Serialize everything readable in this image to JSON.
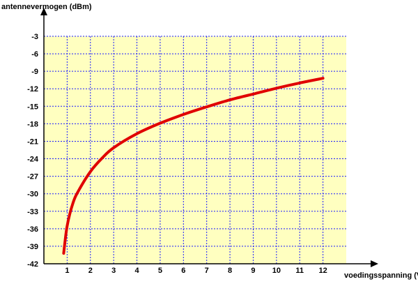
{
  "chart_data": {
    "type": "line",
    "ylabel": "antennevermogen (dBm)",
    "xlabel": "voedingsspanning (V)",
    "xlim": [
      0,
      13
    ],
    "ylim": [
      -42,
      -3
    ],
    "x_ticks": [
      1,
      2,
      3,
      4,
      5,
      6,
      7,
      8,
      9,
      10,
      11,
      12
    ],
    "y_ticks": [
      -3,
      -6,
      -9,
      -12,
      -15,
      -18,
      -21,
      -24,
      -27,
      -30,
      -33,
      -36,
      -39,
      -42
    ],
    "grid": true,
    "colors": {
      "plot_background": "#ffffc0",
      "grid": "#1a1aff",
      "series": "#e00000",
      "axes": "#000000"
    },
    "series": [
      {
        "x": [
          0.85,
          1,
          1.25,
          1.5,
          2,
          2.5,
          3,
          4,
          5,
          6,
          7,
          8,
          9,
          10,
          11,
          12
        ],
        "y": [
          -40.2,
          -35.5,
          -31.6,
          -29.4,
          -26.2,
          -23.9,
          -22.1,
          -19.7,
          -17.9,
          -16.4,
          -15.1,
          -13.9,
          -12.9,
          -11.9,
          -11.0,
          -10.2
        ]
      }
    ]
  }
}
